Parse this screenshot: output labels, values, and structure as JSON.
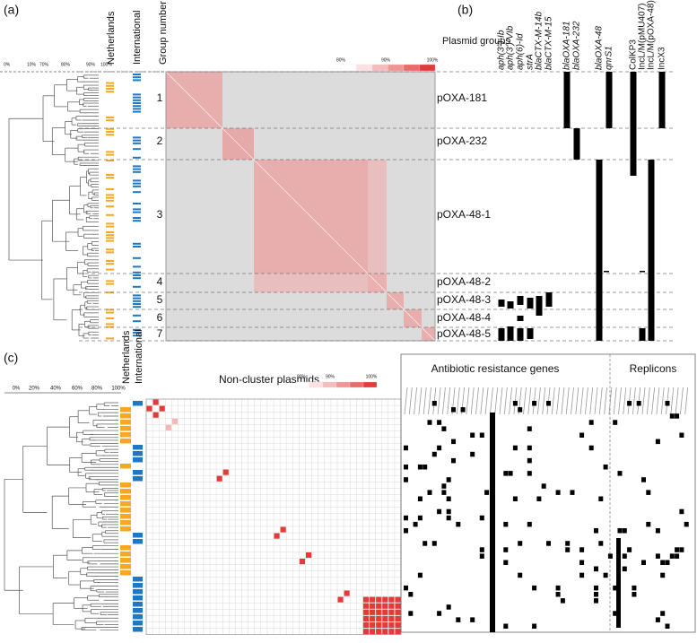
{
  "panel_a": {
    "label": "(a)",
    "axis_ticks": [
      "0%",
      "10%",
      "70%",
      "80%",
      "90%",
      "100%"
    ],
    "columns": [
      "Netherlands",
      "International",
      "Group number"
    ],
    "groups": [
      "1",
      "2",
      "3",
      "4",
      "5",
      "6",
      "7"
    ],
    "scale": [
      "80%",
      "90%",
      "100%"
    ]
  },
  "panel_b": {
    "label": "(b)",
    "header": "Plasmid groups",
    "genes": [
      "aph(3'')-Ib",
      "aph(3')-VIb",
      "aph(6)-Id",
      "strA",
      "blaCTX-M-14b",
      "blaCTX-M-15",
      "blaOXA-181",
      "blaOXA-232",
      "blaOXA-48",
      "qnrS1",
      "ColKP3",
      "IncL/M(pMU407)",
      "IncL/M(pOXA-48)",
      "IncX3"
    ],
    "groups": [
      "pOXA-181",
      "pOXA-232",
      "pOXA-48-1",
      "pOXA-48-2",
      "pOXA-48-3",
      "pOXA-48-4",
      "pOXA-48-5"
    ]
  },
  "panel_c": {
    "label": "(c)",
    "axis_ticks": [
      "0%",
      "20%",
      "40%",
      "60%",
      "80%",
      "100%"
    ],
    "columns": [
      "Netherlands",
      "International"
    ],
    "heatmap_title": "Non-cluster plasmids",
    "scale": [
      "80%",
      "90%",
      "100%"
    ],
    "genes_title": "Antibiotic resistance genes",
    "replicons_title": "Replicons"
  }
}
